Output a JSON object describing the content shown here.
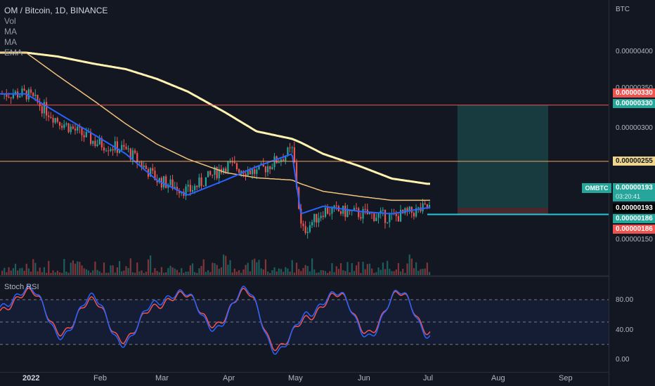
{
  "legend": {
    "title": "OM / Bitcoin, 1D, BINANCE",
    "vol": "Vol",
    "ma1": "MA",
    "ma2": "MA",
    "ema": "EMA"
  },
  "price_axis": {
    "unit": "BTC",
    "ticks": [
      "0.00000400",
      "0.00000350",
      "0.00000300",
      "0.00000150"
    ]
  },
  "badges": {
    "resistance_red": "0.00000330",
    "resistance_teal": "0.00000330",
    "ma_yellow": "0.00000255",
    "last_price": "0.00000193",
    "countdown": "03:20:41",
    "symbol": "OMBTC",
    "current_black": "0.00000193",
    "support_teal": "0.00000186",
    "support_red": "0.00000186"
  },
  "stoch": {
    "label": "Stoch RSI",
    "ticks": [
      "80.00",
      "40.00",
      "0.00"
    ]
  },
  "time_axis": {
    "months": [
      "2022",
      "Feb",
      "Mar",
      "Apr",
      "May",
      "Jun",
      "Jul",
      "Aug",
      "Sep"
    ]
  },
  "colors": {
    "background": "#131722",
    "up": "#26a69a",
    "down": "#ef5350",
    "ma_fast": "#2962ff",
    "ma_slow": "#f0c27b",
    "ema_long": "#fff3b0",
    "stoch_k": "#2962ff",
    "stoch_d": "#ef5350",
    "resistance_line": "#ef5350",
    "ma_line": "#f7a35c",
    "support_line": "#26c6da"
  },
  "chart_data": {
    "type": "line",
    "title": "OM / Bitcoin, 1D, BINANCE",
    "y_unit": "BTC",
    "ylim": [
      1.2e-06,
      4.5e-06
    ],
    "x": [
      "2022-01-01",
      "2022-01-15",
      "2022-02-01",
      "2022-02-15",
      "2022-03-01",
      "2022-03-15",
      "2022-04-01",
      "2022-04-15",
      "2022-05-01",
      "2022-05-05",
      "2022-05-15",
      "2022-06-01",
      "2022-06-15",
      "2022-07-01"
    ],
    "series": [
      {
        "name": "Close",
        "values": [
          3.45e-06,
          3.1e-06,
          2.8e-06,
          2.7e-06,
          2.3e-06,
          2.15e-06,
          2.5e-06,
          2.4e-06,
          2.7e-06,
          1.6e-06,
          1.9e-06,
          1.85e-06,
          1.8e-06,
          1.93e-06
        ]
      },
      {
        "name": "MA",
        "values": [
          3.45e-06,
          3.2e-06,
          2.9e-06,
          2.65e-06,
          2.3e-06,
          2.1e-06,
          2.3e-06,
          2.48e-06,
          2.65e-06,
          1.85e-06,
          1.95e-06,
          1.88e-06,
          1.85e-06,
          1.93e-06
        ]
      },
      {
        "name": "MA",
        "values": [
          4e-06,
          3.7e-06,
          3.35e-06,
          3.05e-06,
          2.78e-06,
          2.58e-06,
          2.4e-06,
          2.33e-06,
          2.3e-06,
          2.25e-06,
          2.15e-06,
          2.08e-06,
          2.03e-06,
          2.03e-06
        ]
      },
      {
        "name": "EMA",
        "values": [
          4e-06,
          3.95e-06,
          3.85e-06,
          3.78e-06,
          3.65e-06,
          3.48e-06,
          3.2e-06,
          2.95e-06,
          2.85e-06,
          2.8e-06,
          2.65e-06,
          2.48e-06,
          2.32e-06,
          2.25e-06
        ]
      }
    ],
    "levels": [
      {
        "name": "resistance",
        "value": 3.3e-06
      },
      {
        "name": "ma",
        "value": 2.55e-06
      },
      {
        "name": "support",
        "value": 1.86e-06
      }
    ],
    "stoch_rsi": {
      "ylim": [
        0,
        100
      ],
      "k": [
        70,
        95,
        30,
        85,
        20,
        75,
        90,
        40,
        95,
        10,
        60,
        90,
        30,
        92,
        30
      ],
      "d": [
        65,
        92,
        35,
        80,
        25,
        70,
        88,
        45,
        92,
        15,
        55,
        88,
        35,
        90,
        35
      ]
    }
  }
}
